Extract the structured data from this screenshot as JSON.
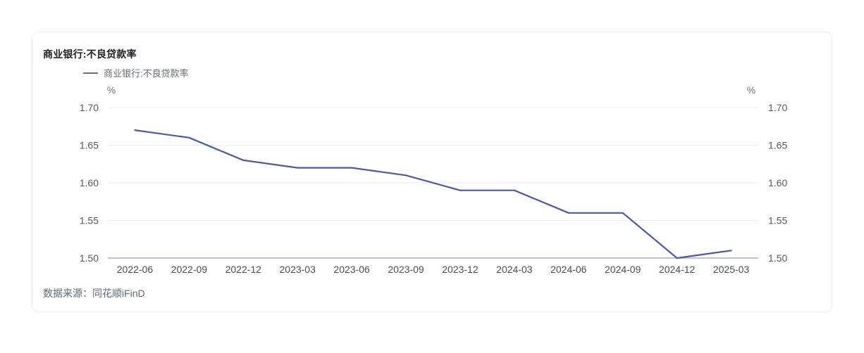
{
  "card": {
    "title": "商业银行:不良贷款率"
  },
  "legend": {
    "label": "商业银行:不良贷款率",
    "marker_color": "#6a7188"
  },
  "chart_data": {
    "type": "line",
    "title": "商业银行:不良贷款率",
    "unit_label_left": "%",
    "unit_label_right": "%",
    "categories": [
      "2022-06",
      "2022-09",
      "2022-12",
      "2023-03",
      "2023-06",
      "2023-09",
      "2023-12",
      "2024-03",
      "2024-06",
      "2024-09",
      "2024-12",
      "2025-03"
    ],
    "series": [
      {
        "name": "商业银行:不良贷款率",
        "color": "#4c5aa0",
        "values": [
          1.67,
          1.66,
          1.63,
          1.62,
          1.62,
          1.61,
          1.59,
          1.59,
          1.56,
          1.56,
          1.5,
          1.51
        ]
      }
    ],
    "ylim": [
      1.5,
      1.7
    ],
    "yticks": [
      1.7,
      1.65,
      1.6,
      1.55,
      1.5
    ],
    "ytick_labels": [
      "1.70",
      "1.65",
      "1.60",
      "1.55",
      "1.50"
    ],
    "grid": true,
    "legend_position": "top-left",
    "dual_y_axis": true,
    "grid_color": "#e9ebf0",
    "axis_color": "#a5b1cc"
  },
  "footer": {
    "source": "数据来源：同花顺iFinD"
  }
}
